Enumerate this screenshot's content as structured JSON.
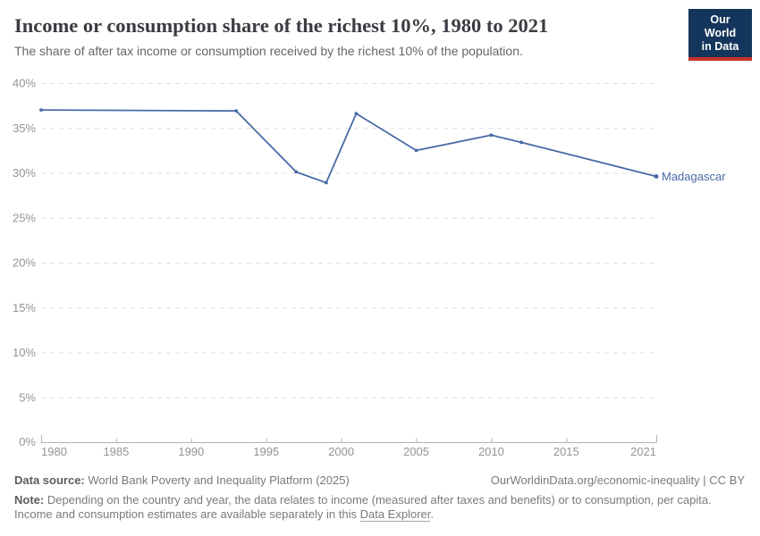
{
  "header": {
    "title": "Income or consumption share of the richest 10%, 1980 to 2021",
    "subtitle": "The share of after tax income or consumption received by the richest 10% of the population.",
    "logo": {
      "line1": "Our World",
      "line2": "in Data"
    }
  },
  "chart_data": {
    "type": "line",
    "title": "Income or consumption share of the richest 10%, 1980 to 2021",
    "xlabel": "",
    "ylabel": "",
    "xlim": [
      1980,
      2021
    ],
    "ylim": [
      0,
      40
    ],
    "x_ticks": [
      1980,
      1985,
      1990,
      1995,
      2000,
      2005,
      2010,
      2015,
      2021
    ],
    "y_ticks": [
      0,
      5,
      10,
      15,
      20,
      25,
      30,
      35,
      40
    ],
    "y_tick_suffix": "%",
    "grid": "horizontal-dashed",
    "legend_position": "end-of-line-label",
    "series": [
      {
        "name": "Madagascar",
        "color": "#4a69a5",
        "x": [
          1980,
          1993,
          1997,
          1999,
          2001,
          2005,
          2010,
          2012,
          2021
        ],
        "values": [
          37.0,
          36.9,
          30.1,
          28.9,
          36.6,
          32.5,
          34.2,
          33.4,
          29.6
        ]
      }
    ]
  },
  "footer": {
    "datasource_label": "Data source:",
    "datasource_value": " World Bank Poverty and Inequality Platform (2025)",
    "license": "OurWorldinData.org/economic-inequality | CC BY",
    "note_label": "Note:",
    "note_body": " Depending on the country and year, the data relates to income (measured after taxes and benefits) or to consumption, per capita. Income and consumption estimates are available separately in this ",
    "note_link": "Data Explorer",
    "note_end": "."
  },
  "colors": {
    "line": "#4a69a5",
    "grid": "#dedede",
    "axis": "#b3b3b3",
    "tick_label": "#949494",
    "logo_bg": "#14355c",
    "logo_accent": "#c8322b"
  }
}
